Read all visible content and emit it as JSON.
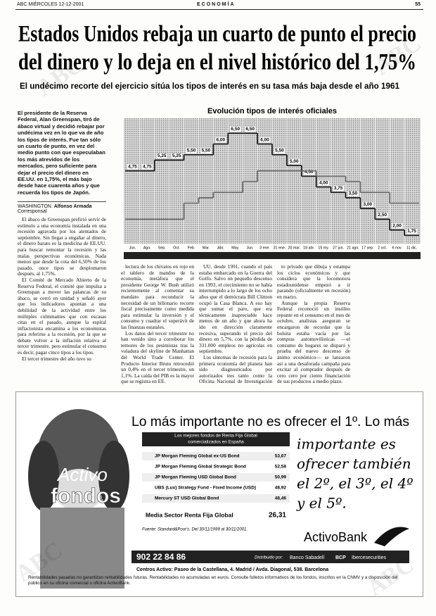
{
  "header": {
    "left": "ABC MIÉRCOLES 12-12-2001",
    "section": "ECONOMÍA",
    "page": "55"
  },
  "watermark": "ABC",
  "headline": [
    "Estados Unidos rebaja un cuarto de punto el precio",
    "del dinero y lo deja en el nivel histórico del 1,75%"
  ],
  "subtitle": "El undécimo recorte del ejercicio sitúa los tipos de interés en su tasa más baja desde el año 1961",
  "lead": "El presidente de la Reserva Federal, Alan Greenspan, tiró de ábaco virtual y decidió rebajar por undécima vez en lo que va de año los tipos de interés. Fue tan sólo un cuarto de punto, en vez del medio punto con que especulaban los más atrevidos de los mercados, pero suficiente para dejar el precio del dinero en EE.UU. en 1,75%, el más bajo desde hace cuarenta años y que recuerda los tipos de Japón.",
  "byline": {
    "place": "WASHINGTON.",
    "author": "Alfonso Armada",
    "role": "Corresponsal"
  },
  "columns": [
    [
      "El ábaco de Greenspan prefirió servir de estímulo a una economía instalada en una recesión agravada por los atentados de septiembre. Sin llegar a engañar al dinero, el dinero barato es la medicina de EE.UU. para buscar remontar la recesión y las malas perspectivas económicas. Nada menos que desde la cota del 6,50% de los pasado, once tipos se desplomaron después, al 1,75%.",
      "El Comité de Mercado Abierto de la Reserva Federal, el comité que impulsa a Greenspan a mover las palancas de su ábaco, se cerró en unidad y señaló ayer que los indicadores apuntan a una debilidad de la actividad entre los múltiples culminantes que con escasas citas en el pasado, aunque la espiral inflacionista encamina a los economistas para referirse a la recesión, por la que se debate volver a la inflación relativa al tercer trimestre, pero estimular el consumo es decir, pagar cinco tipos a los tipos.",
      "El tercer trimestre del año tuvo su"
    ],
    [
      "lectura de los chivatos en rojo en el tablero de mandos de la economía, metáfora que el presidente George W. Bush utilizó recientemente al comentar su mandato para reconducir la necesidad de un billonario recorte fiscal precisamente como medida para estimular la inversión y el consumo y cuadrar el superávit de las finanzas estatales.",
      "Los datos del tercer trimestre no han venido sino a corroborar los temores de los pesimistas tras la voladura del skyline de Manhattan del World Trade Center. El Producto Interior Bruto retrocedió un 0,4% en el tercer trimestre, un 1,1%. La caída del PIB es la mayor que se registra en EE."
    ],
    [
      "UU. desde 1991, cuando el país estaba embarcado en la Guerra del Golfo. Salvo un pequeño descenso en 1993, el crecimiento no se había interrumpido a lo largo de los ocho años que el demócrata Bill Clinton ocupó la Casa Blanca. A eso hay que sumar el paro, que era técnicamente inapreciable hace menos de un año y que ahora ha ido en dirección claramente recesiva, superando el precio del dinero en 5,7%, con la pérdida de 331.000 empleos no agrícolas en septiembre.",
      "Los síntomas de recesión para la primera economía del planeta han sido diagnosticados por autorizados tres tanto como la Oficina Nacional de Investigación Económica, una institu-"
    ],
    [
      "to privado que dibuja y estampa los ciclos económicos y que considera que la locomotora estadounidense empezó a ir parando (oficialmente en recesión) en marzo.",
      "Aunque la propia Reserva Federal reconoció un insólito repunte en el consumo en el mes de octubre, analistas aseguran se encargaron de recordar que la bolsita estaba vacía por las compras automovilísticas —el consumo de hogares se disparó y prueba del nuevo descenso de ánimo económico— se lanzaron así a una desaforada campaña para excitar al comprador después de cero cero por ciento financiación de sus productos a medio plazo."
    ]
  ],
  "chart": {
    "type": "line",
    "title": "Evolución tipos de interés oficiales",
    "categories": [
      "Jun.",
      "Ago.",
      "Sep.",
      "Oct.",
      "Feb.",
      "Mar.",
      "Abr.",
      "May.",
      "Jun.",
      "3 ene.",
      "31 ene.",
      "20 mar.",
      "18 abr.",
      "15 my.",
      "27 jun.",
      "21 ago.",
      "17 sep.",
      "2 oct.",
      "6 nov.",
      "11 dic."
    ],
    "ylim": [
      1.5,
      7
    ],
    "series": [
      {
        "color": "#111111",
        "values": [
          4.75,
          4.75,
          5.25,
          5.25,
          5.5,
          5.5,
          6,
          6.5,
          6.5,
          6,
          5.5,
          5,
          4.5,
          4,
          3.75,
          3.5,
          3,
          2.5,
          2,
          1.75
        ],
        "value_labels": [
          "4,75",
          "4,75",
          "5,25",
          "5,25",
          "5,50",
          "5,50",
          "6,00",
          "6,50",
          "6,50",
          "6,00",
          "5,50",
          "5,00",
          "4,50",
          "4,00",
          "3,75",
          "3,50",
          "3,00",
          "2,50",
          "2,00",
          "1,75"
        ]
      },
      {
        "color": "#666666",
        "values": [
          2.5,
          2.5,
          2.5,
          2.5,
          3.25,
          3.5,
          3.75,
          3.75,
          4.25,
          4.75,
          4.75,
          4.75,
          4.75,
          4.5,
          4.5,
          4.25,
          3.75,
          3.75,
          3.25,
          3.25
        ]
      }
    ]
  },
  "ad": {
    "headline": "Lo más importante no es ofrecer el 1º. Lo más",
    "script": [
      "importante es",
      "ofrecer también",
      "el 2º, el 3º, el 4º",
      "y el 5º."
    ],
    "brand": [
      "Activo",
      "fondos"
    ],
    "table": {
      "header": [
        "Los mejores fondos de Renta Fija Global",
        "comercializados en España"
      ],
      "rows": [
        [
          "JP Morgan Fleming Global ex-US Bond",
          "53,67"
        ],
        [
          "JP Morgan Fleming Global Strategic Bond",
          "52,58"
        ],
        [
          "JP Morgan Fleming USD Global Bond",
          "50,99"
        ],
        [
          "UBS (Lux) Strategy Fund - Fixed Income (USD)",
          "48,92"
        ],
        [
          "Mercury ST USD Global Bond",
          "48,46"
        ]
      ],
      "summary": [
        "Media Sector Renta Fija Global",
        "26,31"
      ]
    },
    "source": "Fuente: Standard&Poor's. Del 30/11/1999 al 30/11/2001.",
    "bank": "ActivoBank",
    "phone": "902 22 84 86",
    "distributed": "Distribuido por:",
    "partners": [
      "Banco Sabadell",
      "BCP",
      "Ibercesecurities"
    ],
    "address": "Centros Activo: Paseo de la Castellana, 4. Madrid / Avda. Diagonal, 538. Barcelona",
    "disclaimer": "Rentabilidades pasadas no garantizan rentabilidades futuras. Rentabilidades no acumuladas en euros. Consulte folletos informativos de los fondos, inscritos en la CNMV y a disposición del público en su oficina comercial u oficina ActivoBank."
  }
}
